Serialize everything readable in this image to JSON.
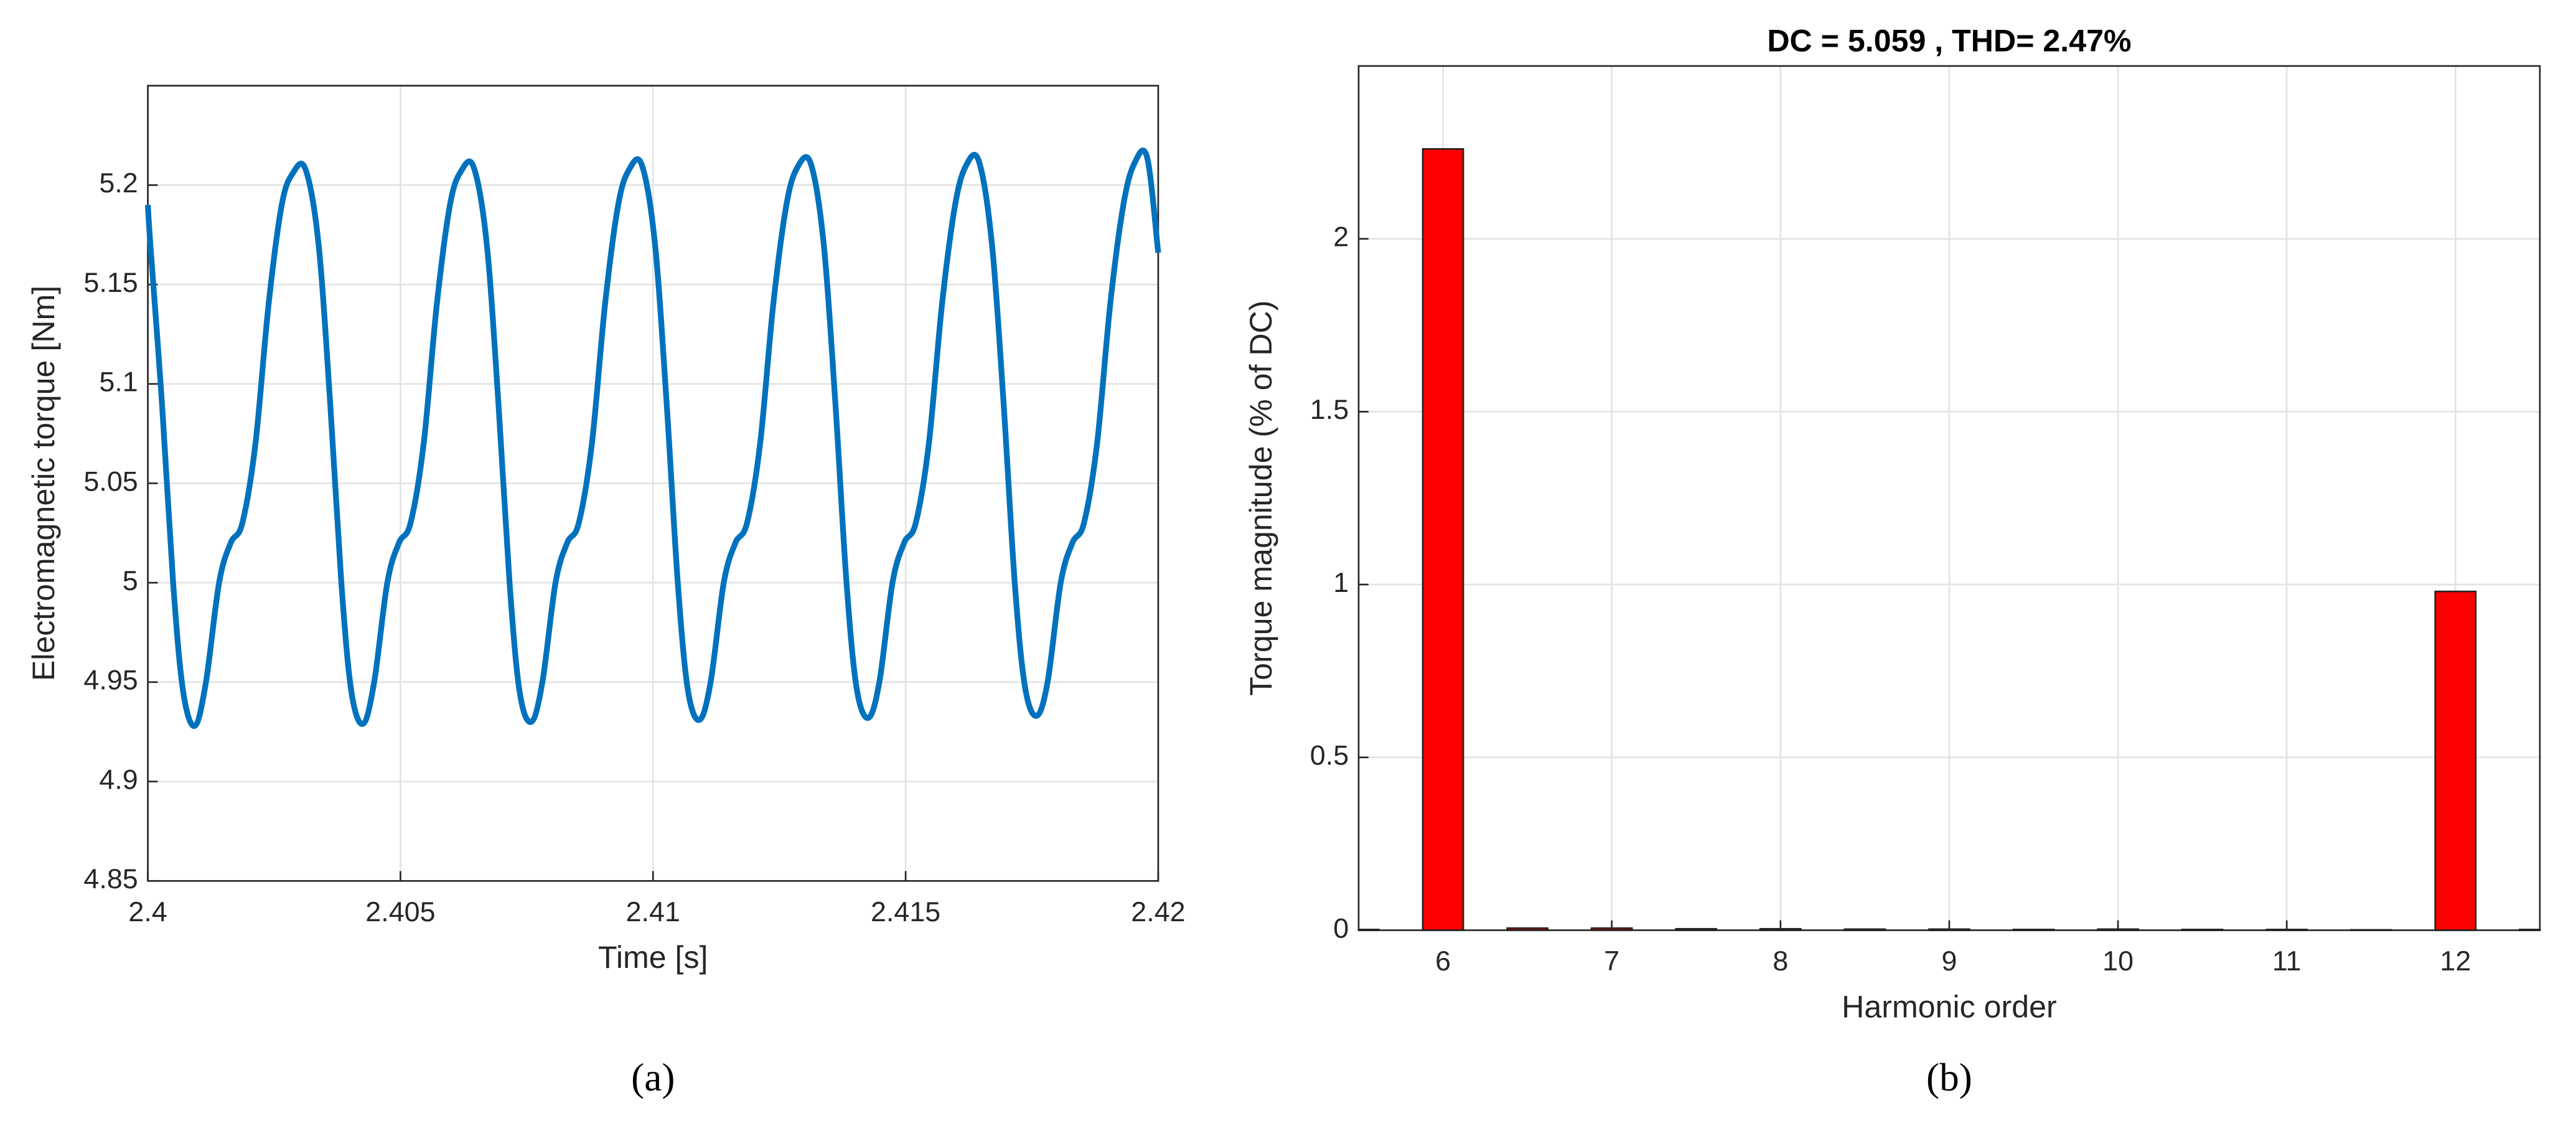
{
  "chart_data": [
    {
      "type": "line",
      "ylabel": "Electromagnetic torque [Nm]",
      "xlabel": "Time [s]",
      "caption": "(a)",
      "color": "#0072bd",
      "grid": true,
      "xlim": [
        2.4,
        2.42
      ],
      "xticks": [
        2.4,
        2.405,
        2.41,
        2.415,
        2.42
      ],
      "ylim": [
        4.85,
        5.25
      ],
      "yticks": [
        4.85,
        4.9,
        4.95,
        5,
        5.05,
        5.1,
        5.15,
        5.2
      ],
      "x": [
        2.4,
        2.40005,
        2.40028,
        2.4005,
        2.4007,
        2.40093,
        2.40115,
        2.40141,
        2.40164,
        2.40187,
        2.40213,
        2.40239,
        2.40265,
        2.40287,
        2.40312,
        2.40338,
        2.40361,
        2.40383,
        2.40403,
        2.40426,
        2.40448,
        2.40474,
        2.40497,
        2.4052,
        2.40546,
        2.40572,
        2.40598,
        2.4062,
        2.40645,
        2.40671,
        2.40694,
        2.40716,
        2.40736,
        2.40759,
        2.40781,
        2.40807,
        2.4083,
        2.40853,
        2.40879,
        2.40905,
        2.40931,
        2.40953,
        2.40978,
        2.41004,
        2.41027,
        2.41049,
        2.41069,
        2.41092,
        2.41114,
        2.4114,
        2.41163,
        2.41186,
        2.41212,
        2.41238,
        2.41264,
        2.41286,
        2.41312,
        2.41338,
        2.41361,
        2.41383,
        2.41403,
        2.41426,
        2.41448,
        2.41474,
        2.41497,
        2.4152,
        2.41546,
        2.41572,
        2.41598,
        2.4162,
        2.41645,
        2.41671,
        2.41694,
        2.41716,
        2.41736,
        2.41759,
        2.41781,
        2.41807,
        2.4183,
        2.41853,
        2.41879,
        2.41905,
        2.41931,
        2.41953,
        2.41978,
        2.42
      ],
      "values": [
        5.19,
        5.17,
        5.09,
        5.0,
        4.945,
        4.928,
        4.95,
        5.0,
        5.02,
        5.03,
        5.07,
        5.14,
        5.19,
        5.206,
        5.208,
        5.17,
        5.09,
        5.0,
        4.945,
        4.929,
        4.95,
        5.0,
        5.02,
        5.03,
        5.07,
        5.14,
        5.19,
        5.207,
        5.209,
        5.17,
        5.09,
        5.0,
        4.945,
        4.93,
        4.95,
        5.0,
        5.02,
        5.03,
        5.07,
        5.14,
        5.19,
        5.208,
        5.21,
        5.17,
        5.09,
        5.0,
        4.946,
        4.931,
        4.95,
        5.0,
        5.02,
        5.03,
        5.07,
        5.14,
        5.19,
        5.209,
        5.211,
        5.17,
        5.09,
        5.0,
        4.947,
        4.932,
        4.95,
        5.0,
        5.02,
        5.03,
        5.07,
        5.14,
        5.19,
        5.21,
        5.212,
        5.17,
        5.09,
        5.0,
        4.948,
        4.933,
        4.95,
        5.0,
        5.02,
        5.03,
        5.07,
        5.14,
        5.19,
        5.211,
        5.214,
        5.166
      ]
    },
    {
      "type": "bar",
      "title": "DC = 5.059 , THD= 2.47%",
      "ylabel": "Torque magnitude (% of DC)",
      "xlabel": "Harmonic order",
      "caption": "(b)",
      "color": "#ff0000",
      "grid": true,
      "xlim": [
        5.5,
        12.5
      ],
      "xticks": [
        6,
        7,
        8,
        9,
        10,
        11,
        12
      ],
      "ylim": [
        0,
        2.5
      ],
      "yticks": [
        0,
        0.5,
        1,
        1.5,
        2
      ],
      "x": [
        5.5,
        6,
        6.5,
        7,
        7.5,
        8,
        8.5,
        9,
        9.5,
        10,
        10.5,
        11,
        11.5,
        12,
        12.5
      ],
      "values": [
        0.002,
        2.26,
        0.006,
        0.006,
        0.004,
        0.004,
        0.003,
        0.003,
        0.002,
        0.003,
        0.002,
        0.002,
        0.001,
        0.98,
        0.002
      ]
    }
  ]
}
